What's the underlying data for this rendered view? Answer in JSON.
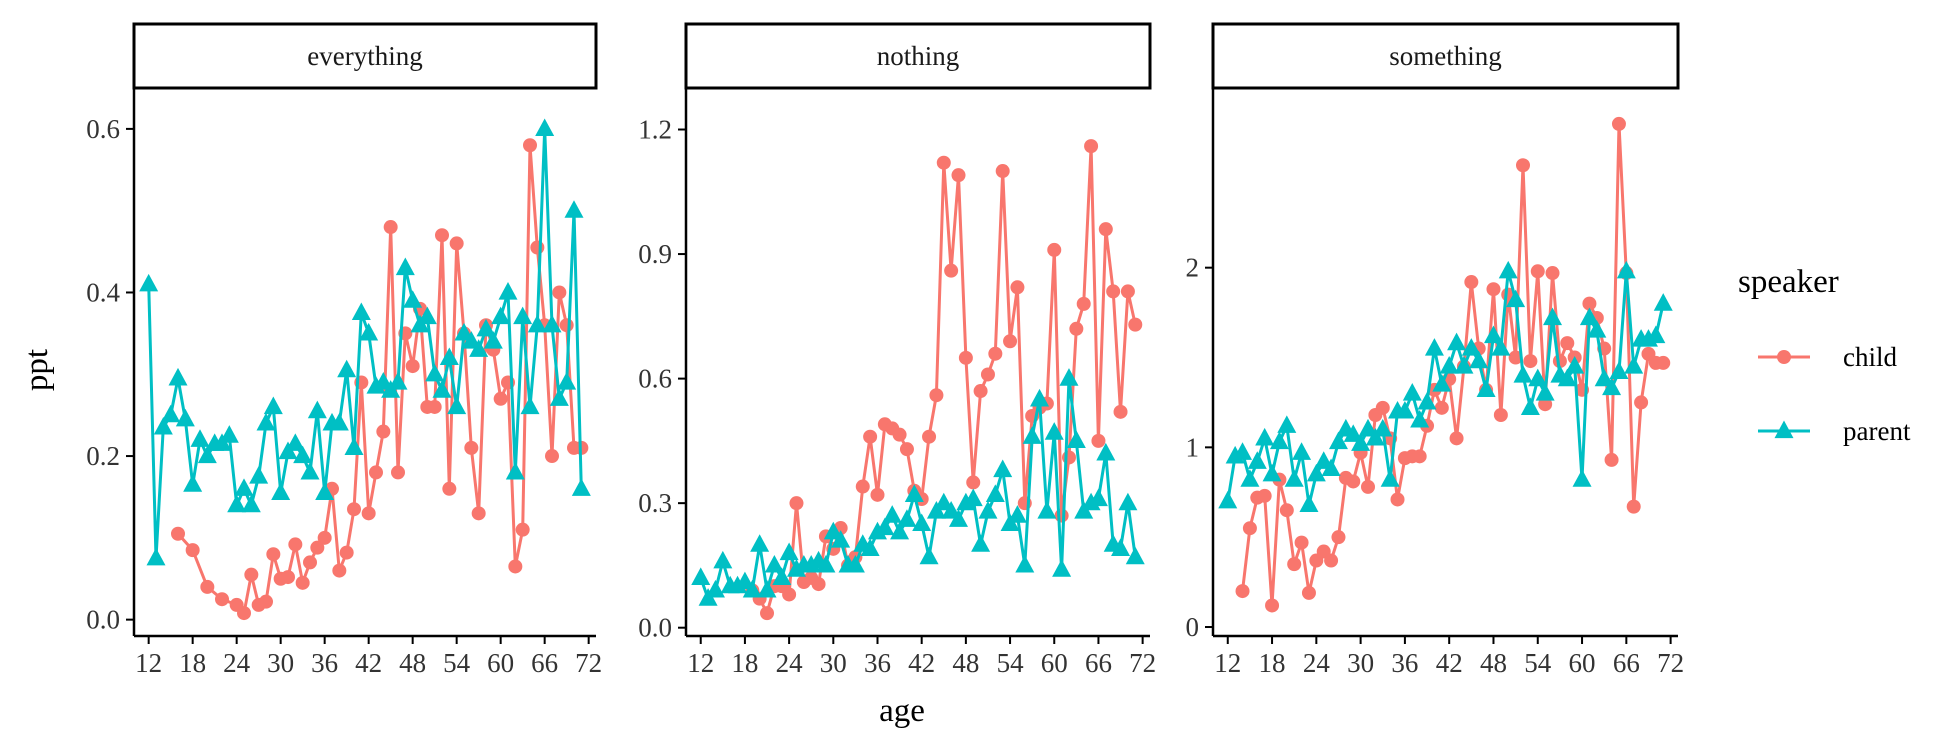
{
  "chart_data": {
    "type": "line",
    "xlabel": "age",
    "ylabel": "ppt",
    "xlim": [
      10,
      73
    ],
    "xticks": [
      12,
      18,
      24,
      30,
      36,
      42,
      48,
      54,
      60,
      66,
      72
    ],
    "legend": {
      "title": "speaker",
      "placement": "right",
      "entries": [
        {
          "name": "child",
          "color": "#F8766D",
          "marker": "circle"
        },
        {
          "name": "parent",
          "color": "#00BFC4",
          "marker": "triangle"
        }
      ]
    },
    "panels": [
      {
        "title": "everything",
        "ylim": [
          -0.02,
          0.65
        ],
        "yticks": [
          0.0,
          0.2,
          0.4,
          0.6
        ],
        "yticklabels": [
          "0.0",
          "0.2",
          "0.4",
          "0.6"
        ],
        "series": [
          {
            "name": "child",
            "x": [
              16,
              18,
              20,
              22,
              24,
              25,
              26,
              27,
              28,
              29,
              30,
              31,
              32,
              33,
              34,
              35,
              36,
              37,
              38,
              39,
              40,
              41,
              42,
              43,
              44,
              45,
              46,
              47,
              48,
              49,
              50,
              51,
              52,
              53,
              54,
              55,
              56,
              57,
              58,
              59,
              60,
              61,
              62,
              63,
              64,
              65,
              66,
              67,
              68,
              69,
              70,
              71
            ],
            "y": [
              0.105,
              0.085,
              0.04,
              0.025,
              0.018,
              0.008,
              0.055,
              0.018,
              0.022,
              0.08,
              0.05,
              0.052,
              0.092,
              0.045,
              0.07,
              0.088,
              0.1,
              0.16,
              0.06,
              0.082,
              0.135,
              0.29,
              0.13,
              0.18,
              0.23,
              0.48,
              0.18,
              0.35,
              0.31,
              0.38,
              0.26,
              0.26,
              0.47,
              0.16,
              0.46,
              0.35,
              0.21,
              0.13,
              0.36,
              0.33,
              0.27,
              0.29,
              0.065,
              0.11,
              0.58,
              0.455,
              0.36,
              0.2,
              0.4,
              0.36,
              0.21,
              0.21
            ]
          },
          {
            "name": "parent",
            "x": [
              12,
              13,
              14,
              15,
              16,
              17,
              18,
              19,
              20,
              21,
              22,
              23,
              24,
              25,
              26,
              27,
              28,
              29,
              30,
              31,
              32,
              33,
              34,
              35,
              36,
              37,
              38,
              39,
              40,
              41,
              42,
              43,
              44,
              45,
              46,
              47,
              48,
              49,
              50,
              51,
              52,
              53,
              54,
              55,
              56,
              57,
              58,
              59,
              60,
              61,
              62,
              63,
              64,
              65,
              66,
              67,
              68,
              69,
              70,
              71
            ],
            "y": [
              0.41,
              0.075,
              0.235,
              0.25,
              0.295,
              0.245,
              0.165,
              0.22,
              0.2,
              0.215,
              0.215,
              0.225,
              0.14,
              0.16,
              0.14,
              0.175,
              0.24,
              0.26,
              0.155,
              0.205,
              0.215,
              0.2,
              0.18,
              0.255,
              0.155,
              0.24,
              0.24,
              0.305,
              0.21,
              0.375,
              0.35,
              0.285,
              0.29,
              0.28,
              0.29,
              0.43,
              0.39,
              0.36,
              0.37,
              0.3,
              0.28,
              0.32,
              0.26,
              0.35,
              0.34,
              0.33,
              0.355,
              0.34,
              0.37,
              0.4,
              0.18,
              0.37,
              0.26,
              0.36,
              0.6,
              0.36,
              0.27,
              0.29,
              0.5,
              0.16
            ]
          }
        ]
      },
      {
        "title": "nothing",
        "ylim": [
          -0.02,
          1.3
        ],
        "yticks": [
          0.0,
          0.3,
          0.6,
          0.9,
          1.2
        ],
        "yticklabels": [
          "0.0",
          "0.3",
          "0.6",
          "0.9",
          "1.2"
        ],
        "series": [
          {
            "name": "child",
            "x": [
              19,
              20,
              21,
              22,
              23,
              24,
              25,
              26,
              27,
              28,
              29,
              30,
              31,
              32,
              33,
              34,
              35,
              36,
              37,
              38,
              39,
              40,
              41,
              42,
              43,
              44,
              45,
              46,
              47,
              48,
              49,
              50,
              51,
              52,
              53,
              54,
              55,
              56,
              57,
              58,
              59,
              60,
              61,
              62,
              63,
              64,
              65,
              66,
              67,
              68,
              69,
              70,
              71
            ],
            "y": [
              0.09,
              0.07,
              0.035,
              0.1,
              0.1,
              0.08,
              0.3,
              0.11,
              0.12,
              0.105,
              0.22,
              0.19,
              0.24,
              0.15,
              0.17,
              0.34,
              0.46,
              0.32,
              0.49,
              0.48,
              0.465,
              0.43,
              0.33,
              0.31,
              0.46,
              0.56,
              1.12,
              0.86,
              1.09,
              0.65,
              0.35,
              0.57,
              0.61,
              0.66,
              1.1,
              0.69,
              0.82,
              0.3,
              0.51,
              0.53,
              0.54,
              0.91,
              0.27,
              0.41,
              0.72,
              0.78,
              1.16,
              0.45,
              0.96,
              0.81,
              0.52,
              0.81,
              0.73
            ]
          },
          {
            "name": "parent",
            "x": [
              12,
              13,
              14,
              15,
              16,
              17,
              18,
              19,
              20,
              21,
              22,
              23,
              24,
              25,
              26,
              27,
              28,
              29,
              30,
              31,
              32,
              33,
              34,
              35,
              36,
              37,
              38,
              39,
              40,
              41,
              42,
              43,
              44,
              45,
              46,
              47,
              48,
              49,
              50,
              51,
              52,
              53,
              54,
              55,
              56,
              57,
              58,
              59,
              60,
              61,
              62,
              63,
              64,
              65,
              66,
              67,
              68,
              69,
              70,
              71
            ],
            "y": [
              0.12,
              0.07,
              0.09,
              0.16,
              0.1,
              0.1,
              0.11,
              0.09,
              0.2,
              0.09,
              0.15,
              0.12,
              0.18,
              0.14,
              0.15,
              0.15,
              0.16,
              0.15,
              0.23,
              0.21,
              0.15,
              0.15,
              0.2,
              0.19,
              0.23,
              0.24,
              0.27,
              0.23,
              0.26,
              0.32,
              0.25,
              0.17,
              0.28,
              0.3,
              0.28,
              0.26,
              0.3,
              0.31,
              0.2,
              0.28,
              0.32,
              0.38,
              0.25,
              0.27,
              0.15,
              0.46,
              0.55,
              0.28,
              0.47,
              0.14,
              0.6,
              0.45,
              0.28,
              0.3,
              0.31,
              0.42,
              0.2,
              0.19,
              0.3,
              0.17
            ]
          }
        ]
      },
      {
        "title": "something",
        "ylim": [
          -0.05,
          3.0
        ],
        "yticks": [
          0,
          1,
          2
        ],
        "yticklabels": [
          "0",
          "1",
          "2"
        ],
        "series": [
          {
            "name": "child",
            "x": [
              14,
              15,
              16,
              17,
              18,
              19,
              20,
              21,
              22,
              23,
              24,
              25,
              26,
              27,
              28,
              29,
              30,
              31,
              32,
              33,
              34,
              35,
              36,
              37,
              38,
              39,
              40,
              41,
              42,
              43,
              44,
              45,
              46,
              47,
              48,
              49,
              50,
              51,
              52,
              53,
              54,
              55,
              56,
              57,
              58,
              59,
              60,
              61,
              62,
              63,
              64,
              65,
              66,
              67,
              68,
              69,
              70,
              71
            ],
            "y": [
              0.2,
              0.55,
              0.72,
              0.73,
              0.12,
              0.82,
              0.65,
              0.35,
              0.47,
              0.19,
              0.37,
              0.42,
              0.37,
              0.5,
              0.83,
              0.81,
              0.97,
              0.78,
              1.18,
              1.22,
              1.05,
              0.71,
              0.94,
              0.95,
              0.95,
              1.12,
              1.32,
              1.22,
              1.38,
              1.05,
              1.45,
              1.92,
              1.55,
              1.32,
              1.88,
              1.18,
              1.85,
              1.5,
              2.57,
              1.48,
              1.98,
              1.24,
              1.97,
              1.48,
              1.58,
              1.5,
              1.32,
              1.8,
              1.72,
              1.55,
              0.93,
              2.8,
              1.97,
              0.67,
              1.25,
              1.52,
              1.47,
              1.47
            ]
          },
          {
            "name": "parent",
            "x": [
              12,
              13,
              14,
              15,
              16,
              17,
              18,
              19,
              20,
              21,
              22,
              23,
              24,
              25,
              26,
              27,
              28,
              29,
              30,
              31,
              32,
              33,
              34,
              35,
              36,
              37,
              38,
              39,
              40,
              41,
              42,
              43,
              44,
              45,
              46,
              47,
              48,
              49,
              50,
              51,
              52,
              53,
              54,
              55,
              56,
              57,
              58,
              59,
              60,
              61,
              62,
              63,
              64,
              65,
              66,
              67,
              68,
              69,
              70,
              71
            ],
            "y": [
              0.7,
              0.95,
              0.97,
              0.82,
              0.92,
              1.05,
              0.85,
              1.03,
              1.12,
              0.82,
              0.97,
              0.68,
              0.85,
              0.92,
              0.88,
              1.03,
              1.1,
              1.07,
              1.02,
              1.1,
              1.05,
              1.1,
              0.82,
              1.2,
              1.2,
              1.3,
              1.15,
              1.25,
              1.55,
              1.35,
              1.45,
              1.58,
              1.45,
              1.55,
              1.48,
              1.32,
              1.62,
              1.55,
              1.98,
              1.82,
              1.4,
              1.22,
              1.38,
              1.3,
              1.72,
              1.4,
              1.38,
              1.45,
              0.82,
              1.72,
              1.65,
              1.38,
              1.33,
              1.42,
              1.98,
              1.45,
              1.6,
              1.6,
              1.62,
              1.8
            ]
          }
        ]
      }
    ]
  }
}
